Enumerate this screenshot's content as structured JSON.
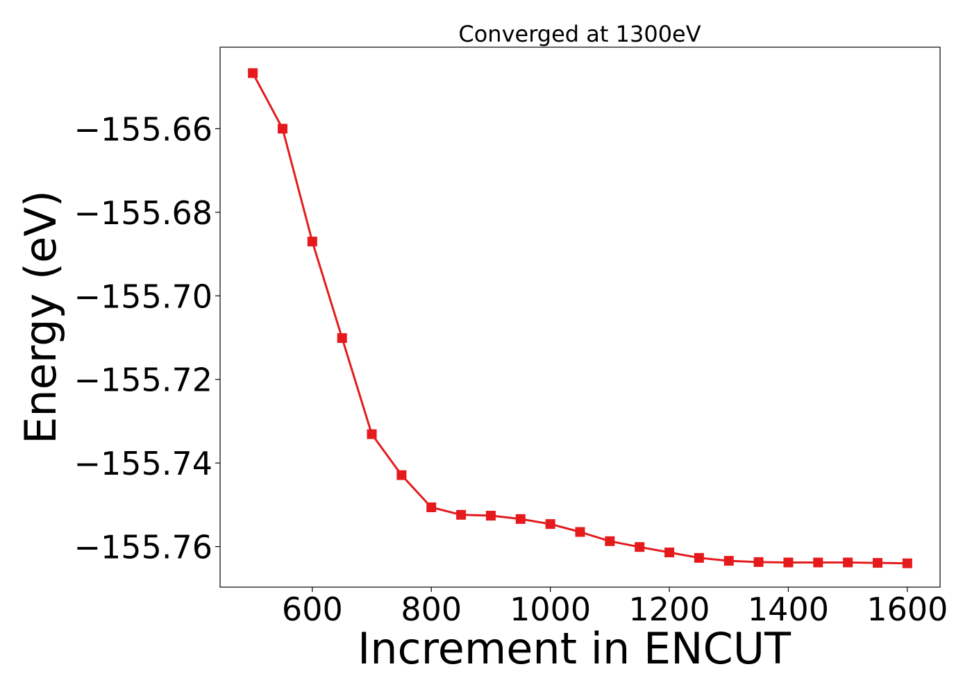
{
  "chart_data": {
    "type": "line",
    "title": "Converged at 1300eV",
    "xlabel": "Increment in ENCUT",
    "ylabel": "Energy (eV)",
    "xlim": [
      445,
      1655
    ],
    "ylim": [
      -155.7697,
      -155.6405
    ],
    "x_ticks": [
      600,
      800,
      1000,
      1200,
      1400,
      1600
    ],
    "x_tick_labels": [
      "600",
      "800",
      "1000",
      "1200",
      "1400",
      "1600"
    ],
    "y_ticks": [
      -155.66,
      -155.68,
      -155.7,
      -155.72,
      -155.74,
      -155.76
    ],
    "y_tick_labels": [
      "−155.66",
      "−155.68",
      "−155.70",
      "−155.72",
      "−155.74",
      "−155.76"
    ],
    "grid": false,
    "legend": false,
    "series": [
      {
        "color": "#e41a1c",
        "marker": "square",
        "x": [
          500,
          550,
          600,
          650,
          700,
          750,
          800,
          850,
          900,
          950,
          1000,
          1050,
          1100,
          1150,
          1200,
          1250,
          1300,
          1350,
          1400,
          1450,
          1500,
          1550,
          1600
        ],
        "y": [
          -155.6467,
          -155.66,
          -155.687,
          -155.7101,
          -155.7331,
          -155.7429,
          -155.7506,
          -155.7524,
          -155.7526,
          -155.7534,
          -155.7546,
          -155.7565,
          -155.7587,
          -155.7601,
          -155.7614,
          -155.7627,
          -155.7634,
          -155.7637,
          -155.7638,
          -155.7638,
          -155.7638,
          -155.7639,
          -155.764
        ]
      }
    ]
  }
}
